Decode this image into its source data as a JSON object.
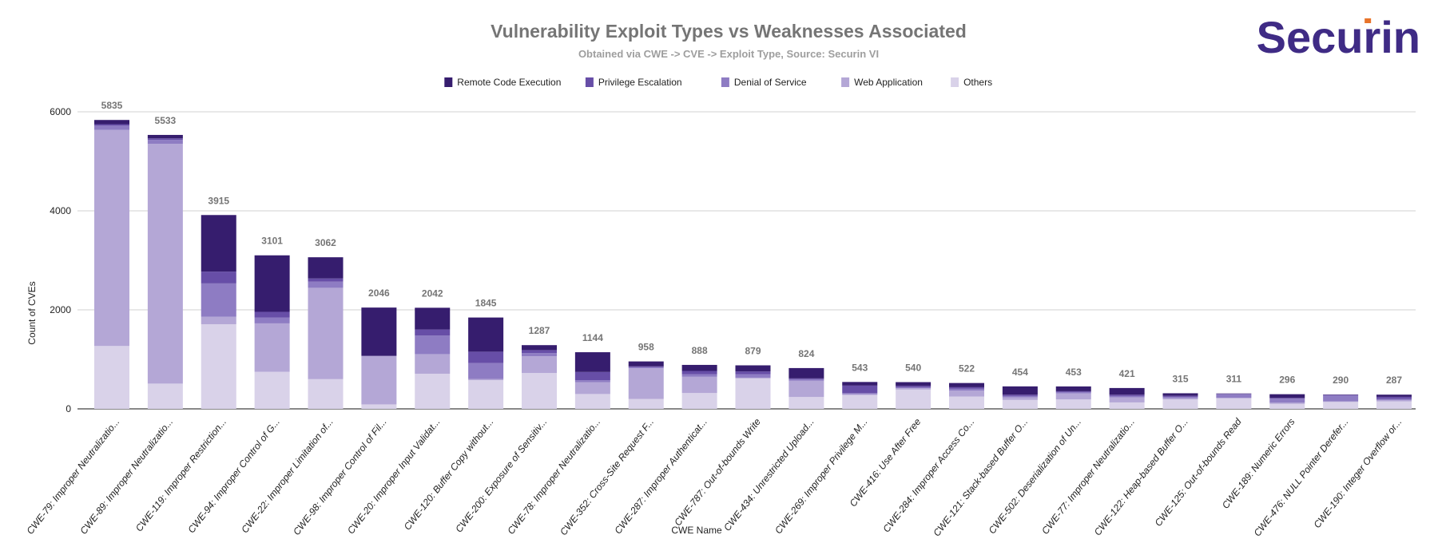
{
  "logo": {
    "text": "Securin",
    "color": "#3f2b85",
    "accent": "#e8742a"
  },
  "chart_data": {
    "type": "bar",
    "stacked": true,
    "title": "Vulnerability Exploit Types vs Weaknesses Associated",
    "subtitle": "Obtained via CWE -> CVE -> Exploit Type, Source: Securin VI",
    "xlabel": "CWE Name",
    "ylabel": "Count of CVEs",
    "ylim": [
      0,
      6000
    ],
    "yticks": [
      0,
      2000,
      4000,
      6000
    ],
    "grid": true,
    "legend_position": "top",
    "categories": [
      "CWE-79: Improper Neutralizatio...",
      "CWE-89: Improper Neutralizatio...",
      "CWE-119: Improper Restriction...",
      "CWE-94: Improper Control of G...",
      "CWE-22: Improper Limitation of...",
      "CWE-98: Improper Control of Fil...",
      "CWE-20: Improper Input Validat...",
      "CWE-120: Buffer Copy without...",
      "CWE-200: Exposure of Sensitiv...",
      "CWE-78: Improper Neutralizatio...",
      "CWE-352: Cross-Site Request F...",
      "CWE-287: Improper Authenticat...",
      "CWE-787: Out-of-bounds Write",
      "CWE-434: Unrestricted Upload...",
      "CWE-269: Improper Privilege M...",
      "CWE-416: Use After Free",
      "CWE-284: Improper Access Co...",
      "CWE-121: Stack-based Buffer O...",
      "CWE-502: Deserialization of Un...",
      "CWE-77: Improper Neutralizatio...",
      "CWE-122: Heap-based Buffer O...",
      "CWE-125: Out-of-bounds Read",
      "CWE-189: Numeric Errors",
      "CWE-476: NULL Pointer Derefer...",
      "CWE-190: Integer Overflow or..."
    ],
    "totals": [
      5835,
      5533,
      3915,
      3101,
      3062,
      2046,
      2042,
      1845,
      1287,
      1144,
      958,
      888,
      879,
      824,
      543,
      540,
      522,
      454,
      453,
      421,
      315,
      311,
      296,
      290,
      287
    ],
    "series": [
      {
        "name": "Others",
        "color": "#d9d2e9",
        "values": [
          1270,
          510,
          1710,
          750,
          600,
          90,
          710,
          580,
          725,
          300,
          200,
          320,
          615,
          240,
          280,
          390,
          250,
          180,
          190,
          130,
          190,
          215,
          100,
          140,
          150
        ]
      },
      {
        "name": "Web Application",
        "color": "#b4a7d6",
        "values": [
          4365,
          4844,
          150,
          977,
          1845,
          980,
          396,
          25,
          338,
          240,
          620,
          328,
          15,
          327,
          17,
          25,
          117,
          52,
          123,
          102,
          26,
          5,
          24,
          11,
          28
        ]
      },
      {
        "name": "Denial of Service",
        "color": "#8e7cc3",
        "values": [
          85,
          80,
          674,
          120,
          124,
          0,
          373,
          323,
          65,
          37,
          27,
          54,
          72,
          32,
          21,
          17,
          38,
          27,
          27,
          27,
          27,
          77,
          81,
          130,
          22
        ]
      },
      {
        "name": "Privilege Escalation",
        "color": "#674ea7",
        "values": [
          30,
          30,
          238,
          113,
          65,
          0,
          124,
          227,
          59,
          168,
          11,
          64,
          54,
          16,
          152,
          32,
          32,
          27,
          16,
          27,
          21,
          5,
          16,
          0,
          43
        ]
      },
      {
        "name": "Remote Code Execution",
        "color": "#361d6e",
        "values": [
          85,
          69,
          1143,
          1141,
          428,
          976,
          439,
          690,
          100,
          399,
          100,
          122,
          123,
          209,
          73,
          76,
          85,
          168,
          97,
          135,
          51,
          9,
          75,
          9,
          44
        ]
      }
    ],
    "legend_order": [
      "Remote Code Execution",
      "Privilege Escalation",
      "Denial of Service",
      "Web Application",
      "Others"
    ]
  }
}
